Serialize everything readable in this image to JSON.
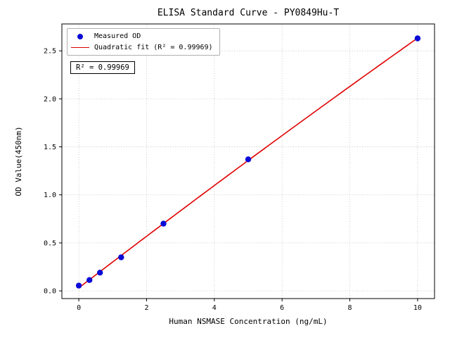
{
  "chart_data": {
    "type": "scatter",
    "title": "ELISA Standard Curve - PY0849Hu-T",
    "xlabel": "Human NSMASE Concentration (ng/mL)",
    "ylabel": "OD Value(450nm)",
    "xlim": [
      -0.5,
      10.5
    ],
    "ylim": [
      -0.08,
      2.78
    ],
    "xticks": [
      0,
      2,
      4,
      6,
      8,
      10
    ],
    "yticks": [
      0.0,
      0.5,
      1.0,
      1.5,
      2.0,
      2.5
    ],
    "grid": true,
    "legend_position": "upper-left",
    "series": [
      {
        "name": "Measured OD",
        "kind": "scatter",
        "color": "#0b0bd6",
        "points": [
          [
            0,
            0.055
          ],
          [
            0.313,
            0.113
          ],
          [
            0.625,
            0.19
          ],
          [
            1.25,
            0.35
          ],
          [
            2.5,
            0.7
          ],
          [
            5,
            1.37
          ],
          [
            10,
            2.63
          ]
        ]
      },
      {
        "name": "Quadratic fit (R² = 0.99969)",
        "kind": "quadratic-fit",
        "color": "#e00000"
      }
    ]
  },
  "legend": {
    "items": [
      {
        "label": "Measured OD"
      },
      {
        "label": "Quadratic fit (R² = 0.99969)"
      }
    ]
  },
  "annotation": {
    "r_squared": "R² = 0.99969"
  }
}
